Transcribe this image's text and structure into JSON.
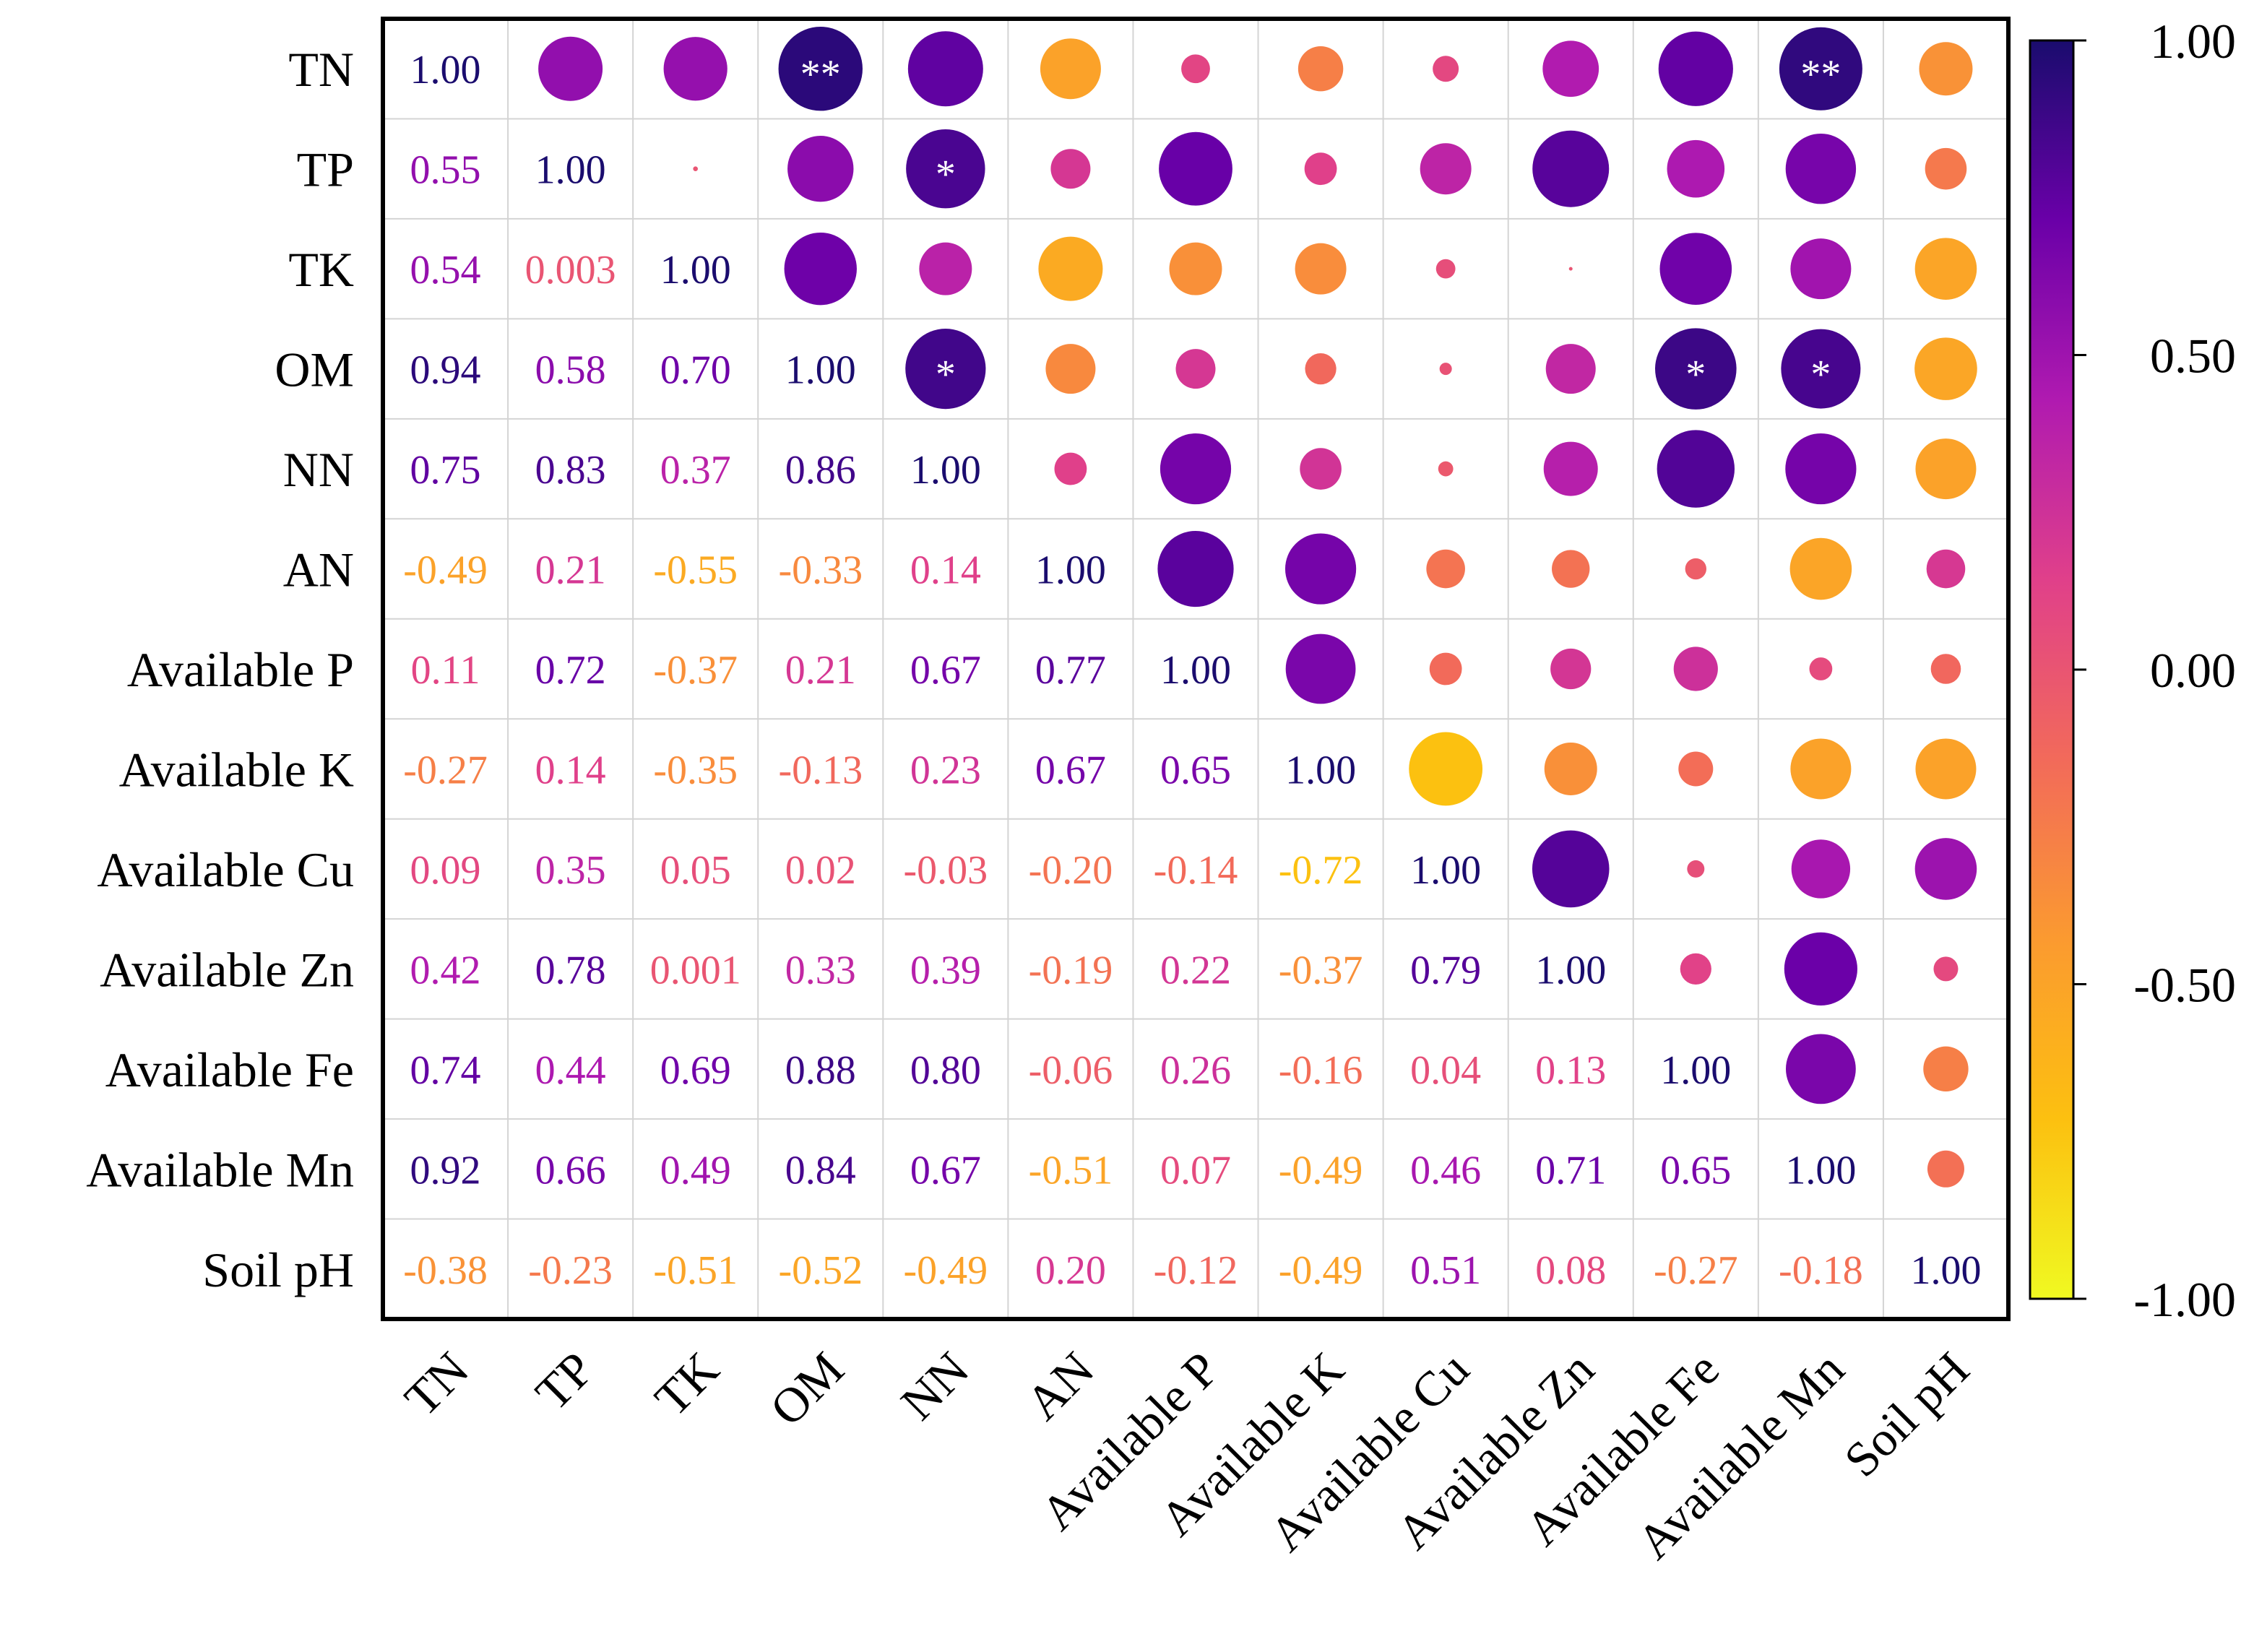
{
  "chart_data": {
    "type": "heatmap",
    "variant": "correlation-matrix",
    "title": "",
    "variables": [
      "TN",
      "TP",
      "TK",
      "OM",
      "NN",
      "AN",
      "Available P",
      "Available K",
      "Available Cu",
      "Available Zn",
      "Available Fe",
      "Available Mn",
      "Soil pH"
    ],
    "lower_triangle_labels": [
      [
        "1.00"
      ],
      [
        "0.55",
        "1.00"
      ],
      [
        "0.54",
        "0.003",
        "1.00"
      ],
      [
        "0.94",
        "0.58",
        "0.70",
        "1.00"
      ],
      [
        "0.75",
        "0.83",
        "0.37",
        "0.86",
        "1.00"
      ],
      [
        "-0.49",
        "0.21",
        "-0.55",
        "-0.33",
        "0.14",
        "1.00"
      ],
      [
        "0.11",
        "0.72",
        "-0.37",
        "0.21",
        "0.67",
        "0.77",
        "1.00"
      ],
      [
        "-0.27",
        "0.14",
        "-0.35",
        "-0.13",
        "0.23",
        "0.67",
        "0.65",
        "1.00"
      ],
      [
        "0.09",
        "0.35",
        "0.05",
        "0.02",
        "-0.03",
        "-0.20",
        "-0.14",
        "-0.72",
        "1.00"
      ],
      [
        "0.42",
        "0.78",
        "0.001",
        "0.33",
        "0.39",
        "-0.19",
        "0.22",
        "-0.37",
        "0.79",
        "1.00"
      ],
      [
        "0.74",
        "0.44",
        "0.69",
        "0.88",
        "0.80",
        "-0.06",
        "0.26",
        "-0.16",
        "0.04",
        "0.13",
        "1.00"
      ],
      [
        "0.92",
        "0.66",
        "0.49",
        "0.84",
        "0.67",
        "-0.51",
        "0.07",
        "-0.49",
        "0.46",
        "0.71",
        "0.65",
        "1.00"
      ],
      [
        "-0.38",
        "-0.23",
        "-0.51",
        "-0.52",
        "-0.49",
        "0.20",
        "-0.12",
        "-0.49",
        "0.51",
        "0.08",
        "-0.27",
        "-0.18",
        "1.00"
      ]
    ],
    "upper_triangle": "circles (size and color encode r)",
    "upper_circle_values": [
      [
        0.55,
        0.54,
        0.94,
        0.75,
        -0.49,
        0.11,
        -0.27,
        0.09,
        0.42,
        0.74,
        0.92,
        -0.38
      ],
      [
        0.003,
        0.58,
        0.83,
        0.21,
        0.72,
        0.14,
        0.35,
        0.78,
        0.44,
        0.66,
        -0.23
      ],
      [
        0.7,
        0.37,
        -0.55,
        -0.37,
        -0.35,
        0.05,
        0.001,
        0.69,
        0.49,
        -0.51
      ],
      [
        0.86,
        -0.33,
        0.21,
        -0.13,
        0.02,
        0.33,
        0.88,
        0.84,
        -0.52
      ],
      [
        0.14,
        0.67,
        0.23,
        -0.03,
        0.39,
        0.8,
        0.67,
        -0.49
      ],
      [
        0.77,
        0.67,
        -0.2,
        -0.19,
        -0.06,
        -0.51,
        0.2
      ],
      [
        0.65,
        -0.14,
        0.22,
        0.26,
        0.07,
        -0.12
      ],
      [
        -0.72,
        -0.37,
        -0.16,
        -0.49,
        -0.49
      ],
      [
        0.79,
        0.04,
        0.46,
        0.51
      ],
      [
        0.13,
        0.71,
        0.08
      ],
      [
        0.65,
        -0.27
      ],
      [
        -0.18
      ]
    ],
    "significance": [
      {
        "row": "TN",
        "col": "OM",
        "mark": "**"
      },
      {
        "row": "TN",
        "col": "Available Mn",
        "mark": "**"
      },
      {
        "row": "TP",
        "col": "NN",
        "mark": "*"
      },
      {
        "row": "OM",
        "col": "NN",
        "mark": "*"
      },
      {
        "row": "OM",
        "col": "Available Fe",
        "mark": "*"
      },
      {
        "row": "OM",
        "col": "Available Mn",
        "mark": "*"
      }
    ],
    "colorbar": {
      "range": [
        -1.0,
        1.0
      ],
      "ticks": [
        "1.00",
        "0.50",
        "0.00",
        "-0.50",
        "-1.00"
      ],
      "colormap": "plasma",
      "colors": [
        "#1a0c6e",
        "#6a00a8",
        "#b01ab0",
        "#e0408a",
        "#f26a5a",
        "#fb9a30",
        "#fcc010",
        "#f0f921"
      ]
    }
  }
}
